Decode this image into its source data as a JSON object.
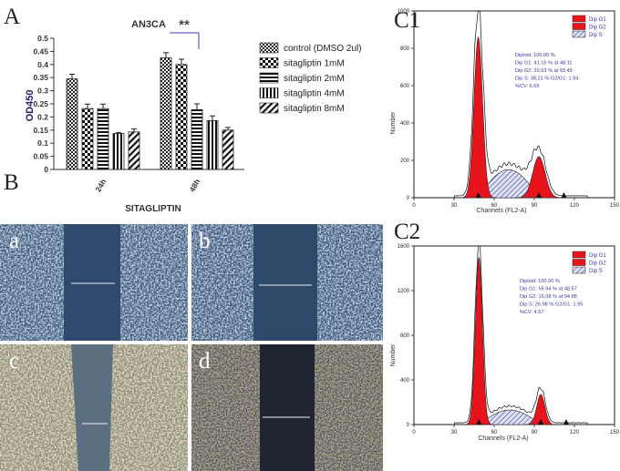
{
  "panel_labels": {
    "A": "A",
    "B": "B",
    "C1": "C1",
    "C2": "C2"
  },
  "micro_labels": [
    "a",
    "b",
    "c",
    "d"
  ],
  "colors": {
    "red": "#e8141b",
    "navy": "#23236b",
    "blue": "#3a3aa0"
  },
  "chart_data": [
    {
      "type": "bar",
      "title": "AN3CA",
      "xlabel": "SITAGLIPTIN",
      "ylabel": "OD450",
      "ylim": [
        0,
        0.5
      ],
      "yticks": [
        "0",
        "0.05",
        "0.1",
        "0.15",
        "0.2",
        "0.25",
        "0.3",
        "0.35",
        "0.4",
        "0.45",
        "0.5"
      ],
      "categories": [
        "24h",
        "48h"
      ],
      "series": [
        {
          "name": "control (DMSO 2ul)",
          "values": [
            0.345,
            0.425
          ],
          "errors": [
            0.018,
            0.02
          ]
        },
        {
          "name": "sitagliptin 1mM",
          "values": [
            0.232,
            0.4
          ],
          "errors": [
            0.017,
            0.02
          ]
        },
        {
          "name": "sitagliptin 2mM",
          "values": [
            0.232,
            0.228
          ],
          "errors": [
            0.017,
            0.022
          ]
        },
        {
          "name": "sitagliptin 4mM",
          "values": [
            0.137,
            0.186
          ],
          "errors": [
            0.003,
            0.018
          ]
        },
        {
          "name": "sitagliptin 8mM",
          "values": [
            0.143,
            0.15
          ],
          "errors": [
            0.011,
            0.01
          ]
        }
      ],
      "significance": "**"
    },
    {
      "type": "area",
      "panel": "C1",
      "xlabel": "Channels (FL2-A)",
      "ylabel": "Number",
      "xlim": [
        0,
        150
      ],
      "ylim": [
        0,
        1000
      ],
      "xticks": [
        "0",
        "30",
        "60",
        "90",
        "120",
        "150"
      ],
      "yticks": [
        "0",
        "200",
        "400",
        "600",
        "800",
        "1000"
      ],
      "legend": [
        "Dip G1",
        "Dip G2",
        "Dip S"
      ],
      "stats": [
        "Diploid: 100.00 %",
        "Dip G1: 41.16 % at 48.11",
        "Dip G2: 20.63 % at 93.45",
        "Dip S: 38.21 %   G2/G1: 1.94",
        "%CV: 6.65"
      ],
      "g1_peak": {
        "x": 48.11,
        "y": 860,
        "sd": 3.2
      },
      "g2_peak": {
        "x": 93.45,
        "y": 220,
        "sd": 4.6
      },
      "s_level": 150,
      "envelope_peak": 1020
    },
    {
      "type": "area",
      "panel": "C2",
      "xlabel": "Channels (FL2-A)",
      "ylabel": "Number",
      "xlim": [
        0,
        150
      ],
      "ylim": [
        0,
        1600
      ],
      "xticks": [
        "0",
        "30",
        "60",
        "90",
        "120",
        "150"
      ],
      "yticks": [
        "0",
        "400",
        "800",
        "1200",
        "1600"
      ],
      "legend": [
        "Dip G1",
        "Dip G2",
        "Dip S"
      ],
      "stats": [
        "Diploid: 100.00 %",
        "Dip G1: 56.94 % at 48.57",
        "Dip G2: 16.08 % at 94.88",
        "Dip S: 26.98 %   G2/G1: 1.95",
        "%CV: 4.57"
      ],
      "g1_peak": {
        "x": 48.57,
        "y": 1500,
        "sd": 2.6
      },
      "g2_peak": {
        "x": 94.88,
        "y": 270,
        "sd": 3.0
      },
      "s_level": 130,
      "envelope_peak": 1640
    }
  ]
}
